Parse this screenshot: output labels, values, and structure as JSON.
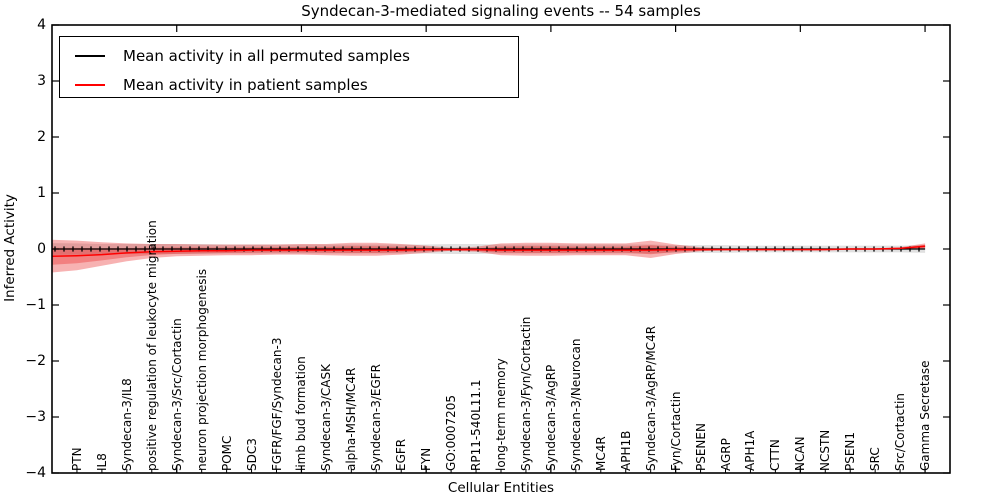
{
  "title": "Syndecan-3-mediated signaling events -- 54 samples",
  "axes": {
    "ylabel": "Inferred Activity",
    "xlabel": "Cellular Entities",
    "ytick_labels": [
      "4",
      "3",
      "2",
      "1",
      "0",
      "−1",
      "−2",
      "−3",
      "−4"
    ],
    "ytick_values": [
      4,
      3,
      2,
      1,
      0,
      -1,
      -2,
      -3,
      -4
    ]
  },
  "legend": {
    "position": "upper left",
    "entries": [
      {
        "label": "Mean activity in all permuted samples",
        "color": "#000000"
      },
      {
        "label": "Mean activity in patient samples",
        "color": "#ff0000"
      }
    ]
  },
  "chart_data": {
    "type": "line",
    "title": "Syndecan-3-mediated signaling events -- 54 samples",
    "xlabel": "Cellular Entities",
    "ylabel": "Inferred Activity",
    "ylim": [
      -4,
      4
    ],
    "grid": false,
    "legend_position": "upper left",
    "colors": {
      "permuted_line": "#000000",
      "permuted_band": "#000000",
      "patient_line": "#ff0000",
      "patient_band": "#e60000"
    },
    "categories": [
      "PTN",
      "IL8",
      "Syndecan-3/IL8",
      "positive regulation of leukocyte migration",
      "Syndecan-3/Src/Cortactin",
      "neuron projection morphogenesis",
      "POMC",
      "SDC3",
      "FGFR/FGF/Syndecan-3",
      "limb bud formation",
      "Syndecan-3/CASK",
      "alpha-MSH/MC4R",
      "Syndecan-3/EGFR",
      "EGFR",
      "FYN",
      "GO:0007205",
      "RP11-540L11.1",
      "long-term memory",
      "Syndecan-3/Fyn/Cortactin",
      "Syndecan-3/AgRP",
      "Syndecan-3/Neurocan",
      "MC4R",
      "APH1B",
      "Syndecan-3/AgRP/MC4R",
      "Fyn/Cortactin",
      "PSENEN",
      "AGRP",
      "APH1A",
      "CTTN",
      "NCAN",
      "NCSTN",
      "PSEN1",
      "SRC",
      "Src/Cortactin",
      "Gamma Secretase"
    ],
    "series": [
      {
        "name": "Mean activity in all permuted samples",
        "values": [
          0,
          0,
          0,
          0,
          0,
          0,
          0,
          0,
          0,
          0,
          0,
          0,
          0,
          0,
          0,
          0,
          0,
          0,
          0,
          0,
          0,
          0,
          0,
          0,
          0,
          0,
          0,
          0,
          0,
          0,
          0,
          0,
          0,
          0,
          0
        ],
        "band_halfwidth": [
          0.1,
          0.09,
          0.09,
          0.09,
          0.09,
          0.09,
          0.08,
          0.08,
          0.08,
          0.08,
          0.08,
          0.08,
          0.08,
          0.08,
          0.08,
          0.09,
          0.09,
          0.08,
          0.08,
          0.08,
          0.08,
          0.08,
          0.08,
          0.08,
          0.07,
          0.07,
          0.07,
          0.06,
          0.06,
          0.06,
          0.06,
          0.06,
          0.06,
          0.06,
          0.07
        ]
      },
      {
        "name": "Mean activity in patient samples",
        "values": [
          -0.12,
          -0.1,
          -0.07,
          -0.05,
          -0.04,
          -0.03,
          -0.03,
          -0.02,
          -0.02,
          -0.02,
          -0.02,
          -0.02,
          -0.02,
          -0.02,
          -0.01,
          -0.01,
          -0.01,
          -0.02,
          -0.02,
          -0.02,
          -0.02,
          -0.02,
          -0.02,
          -0.02,
          -0.01,
          -0.01,
          -0.01,
          -0.01,
          -0.01,
          -0.01,
          -0.01,
          0.0,
          0.0,
          0.01,
          0.05
        ],
        "band_upper": [
          0.15,
          0.12,
          0.1,
          0.09,
          0.09,
          0.08,
          0.08,
          0.08,
          0.08,
          0.09,
          0.09,
          0.11,
          0.11,
          0.09,
          0.06,
          0.02,
          0.04,
          0.1,
          0.11,
          0.11,
          0.1,
          0.1,
          0.1,
          0.15,
          0.08,
          0.03,
          0.01,
          0.01,
          0.01,
          0.01,
          0.01,
          0.01,
          0.01,
          0.03,
          0.1
        ],
        "band_lower": [
          -0.38,
          -0.3,
          -0.22,
          -0.16,
          -0.13,
          -0.12,
          -0.11,
          -0.11,
          -0.1,
          -0.1,
          -0.11,
          -0.12,
          -0.12,
          -0.1,
          -0.07,
          -0.03,
          -0.05,
          -0.11,
          -0.12,
          -0.12,
          -0.11,
          -0.11,
          -0.11,
          -0.16,
          -0.09,
          -0.04,
          -0.02,
          -0.01,
          -0.01,
          -0.01,
          -0.01,
          -0.01,
          -0.01,
          -0.01,
          0.0
        ]
      }
    ]
  }
}
